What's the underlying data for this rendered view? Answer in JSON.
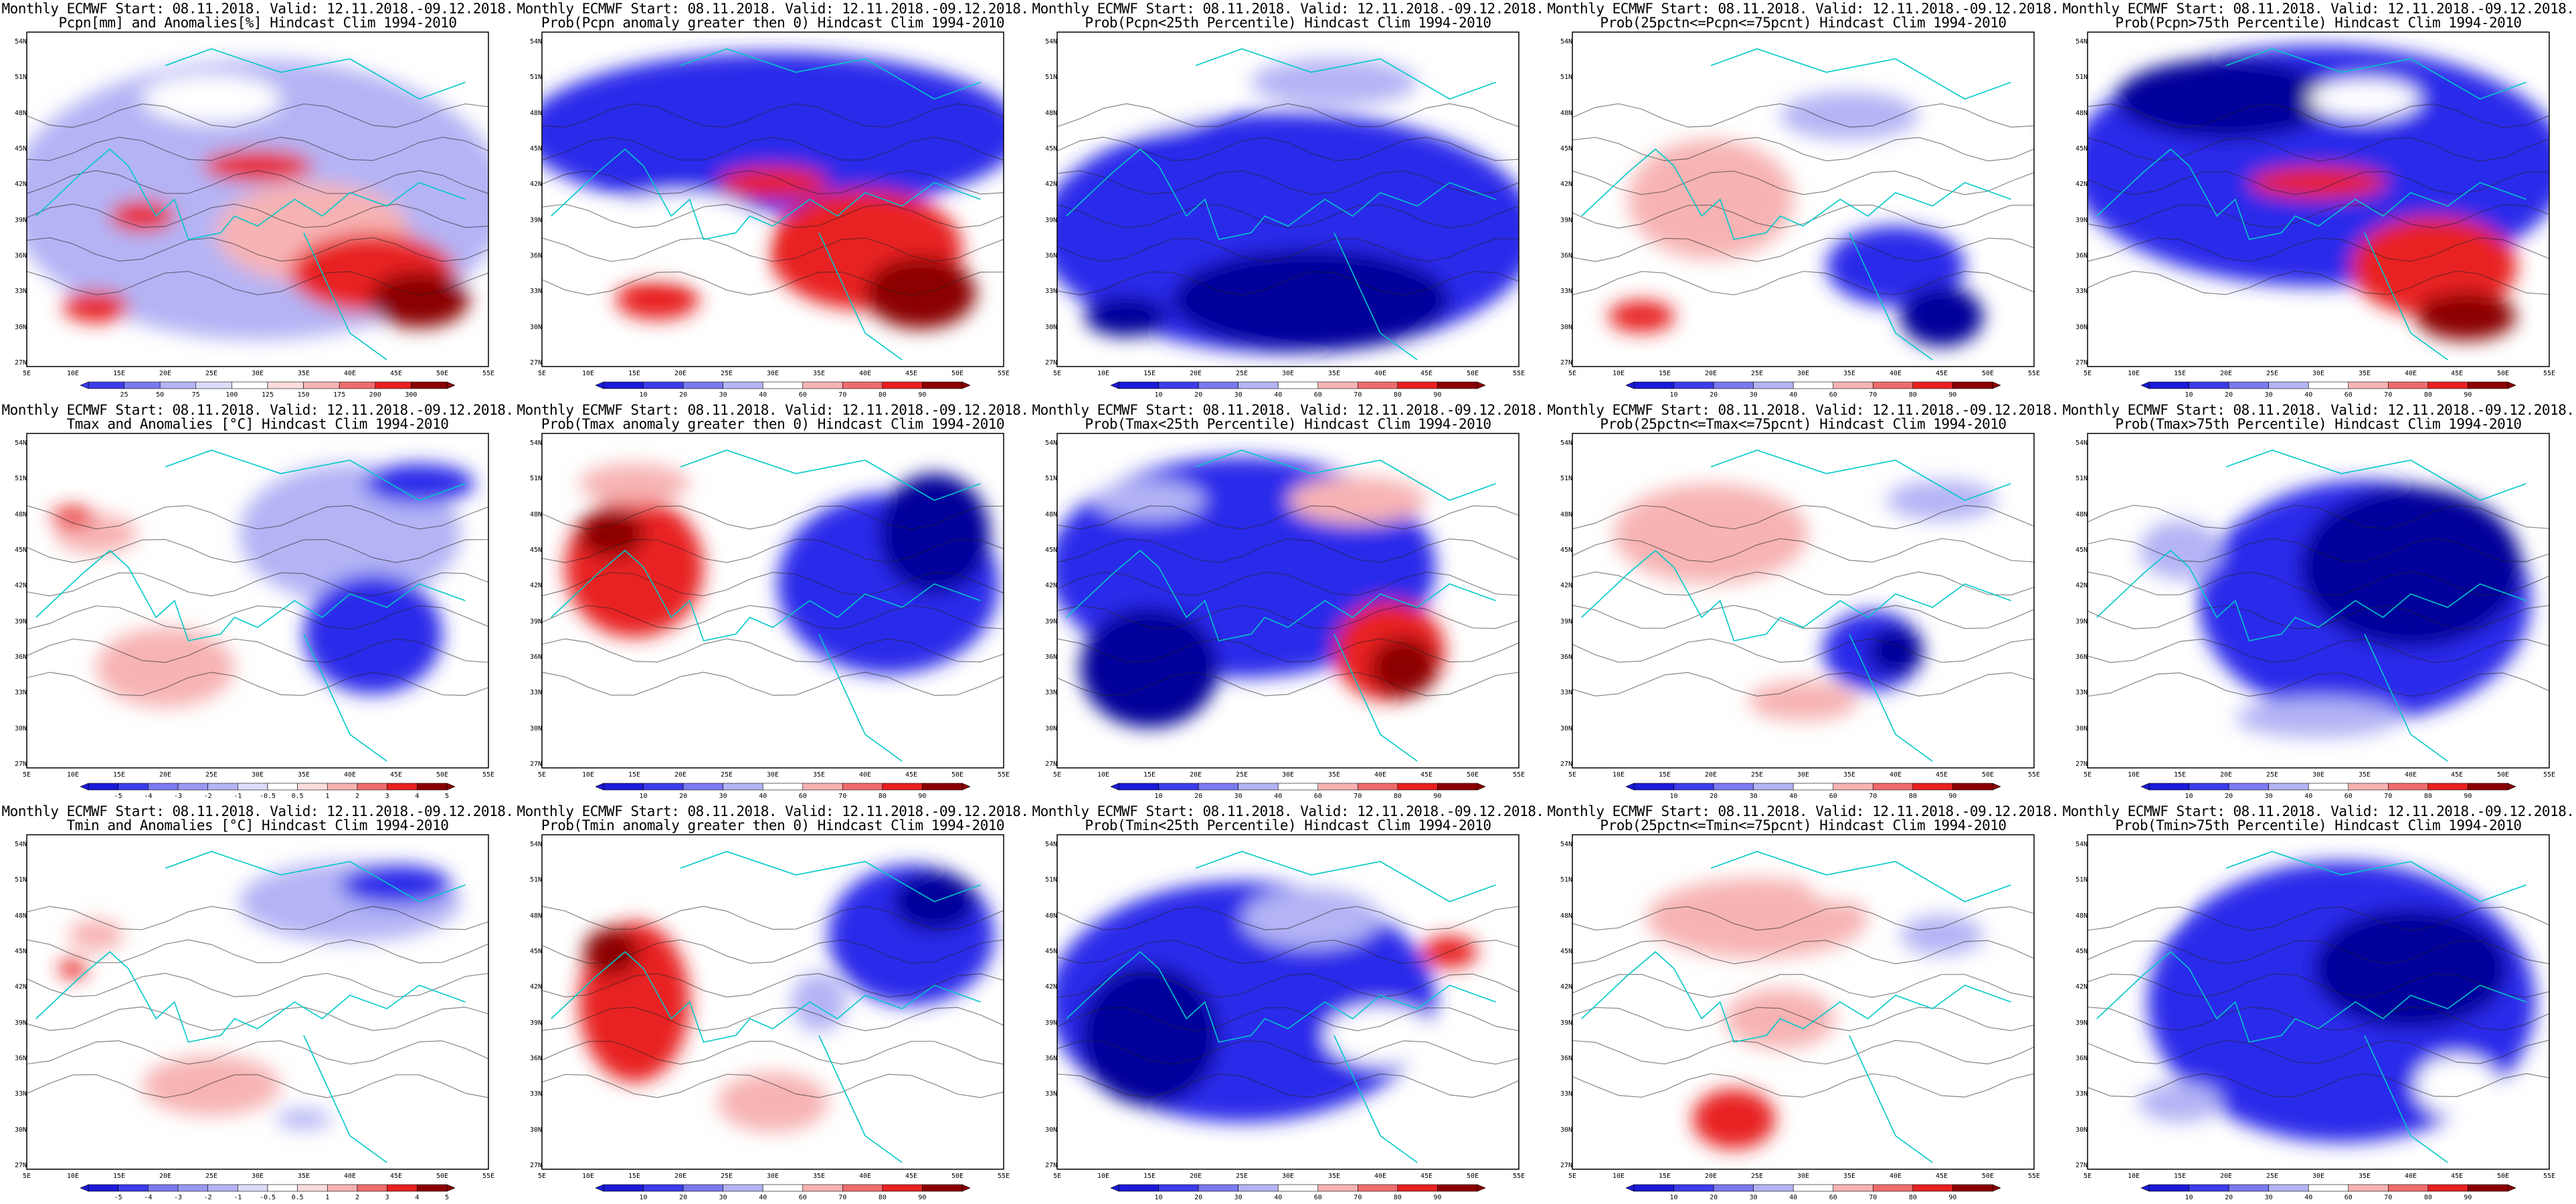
{
  "header_common": "Monthly ECMWF Start: 08.11.2018. Valid: 12.11.2018.-09.12.2018.",
  "lat_labels": [
    "54N",
    "51N",
    "48N",
    "45N",
    "42N",
    "39N",
    "36N",
    "33N",
    "30N",
    "27N"
  ],
  "lon_labels": [
    "5E",
    "10E",
    "15E",
    "20E",
    "25E",
    "30E",
    "35E",
    "40E",
    "45E",
    "50E",
    "55E"
  ],
  "colors": {
    "red_dark": "#8b0000",
    "red": "#e82020",
    "red_light": "#f7b3b3",
    "white": "#ffffff",
    "blue_light": "#b4b4f5",
    "blue": "#2a2aea",
    "blue_dark": "#00009a",
    "coast": "#00c8c8"
  },
  "colorbars": {
    "pcpn_anom": [
      "25",
      "50",
      "75",
      "100",
      "125",
      "150",
      "175",
      "200",
      "300"
    ],
    "temp_anom": [
      "-5",
      "-4",
      "-3",
      "-2",
      "-1",
      "-0.5",
      "0.5",
      "1",
      "2",
      "3",
      "4",
      "5"
    ],
    "prob": [
      "10",
      "20",
      "30",
      "40",
      "60",
      "70",
      "80",
      "90"
    ]
  },
  "panels": [
    {
      "id": "r1c1",
      "header": "Monthly ECMWF Start: 08.11.2018. Valid: 12.11.2018.-09.12.2018.",
      "subtitle": "Pcpn[mm] and Anomalies[%] Hindcast Clim 1994-2010",
      "cbar": "pcpn_anom",
      "scheme": "pcpn_anom"
    },
    {
      "id": "r1c2",
      "header": "Monthly ECMWF Start: 08.11.2018. Valid: 12.11.2018.-09.12.2018.",
      "subtitle": "Prob(Pcpn anomaly greater then 0) Hindcast Clim 1994-2010",
      "cbar": "prob",
      "scheme": "pcpn_pos"
    },
    {
      "id": "r1c3",
      "header": "Monthly ECMWF Start: 08.11.2018. Valid: 12.11.2018.-09.12.2018.",
      "subtitle": "Prob(Pcpn<25th Percentile) Hindcast Clim 1994-2010",
      "cbar": "prob",
      "scheme": "pcpn_low"
    },
    {
      "id": "r1c4",
      "header": "Monthly ECMWF Start: 08.11.2018. Valid: 12.11.2018.-09.12.2018.",
      "subtitle": "Prob(25pctn<=Pcpn<=75pcnt) Hindcast Clim 1994-2010",
      "cbar": "prob",
      "scheme": "pcpn_mid"
    },
    {
      "id": "r1c5",
      "header": "Monthly ECMWF Start: 08.11.2018. Valid: 12.11.2018.-09.12.2018.",
      "subtitle": "Prob(Pcpn>75th Percentile) Hindcast Clim 1994-2010",
      "cbar": "prob",
      "scheme": "pcpn_high"
    },
    {
      "id": "r2c1",
      "header": "Monthly ECMWF Start: 08.11.2018. Valid: 12.11.2018.-09.12.2018.",
      "subtitle": "Tmax and Anomalies [°C] Hindcast Clim 1994-2010",
      "cbar": "temp_anom",
      "scheme": "tmax_anom"
    },
    {
      "id": "r2c2",
      "header": "Monthly ECMWF Start: 08.11.2018. Valid: 12.11.2018.-09.12.2018.",
      "subtitle": "Prob(Tmax anomaly greater then 0) Hindcast Clim 1994-2010",
      "cbar": "prob",
      "scheme": "tmax_pos"
    },
    {
      "id": "r2c3",
      "header": "Monthly ECMWF Start: 08.11.2018. Valid: 12.11.2018.-09.12.2018.",
      "subtitle": "Prob(Tmax<25th Percentile) Hindcast Clim 1994-2010",
      "cbar": "prob",
      "scheme": "tmax_low"
    },
    {
      "id": "r2c4",
      "header": "Monthly ECMWF Start: 08.11.2018. Valid: 12.11.2018.-09.12.2018.",
      "subtitle": "Prob(25pctn<=Tmax<=75pcnt) Hindcast Clim 1994-2010",
      "cbar": "prob",
      "scheme": "tmax_mid"
    },
    {
      "id": "r2c5",
      "header": "Monthly ECMWF Start: 08.11.2018. Valid: 12.11.2018.-09.12.2018.",
      "subtitle": "Prob(Tmax>75th Percentile) Hindcast Clim 1994-2010",
      "cbar": "prob",
      "scheme": "tmax_high"
    },
    {
      "id": "r3c1",
      "header": "Monthly ECMWF Start: 08.11.2018. Valid: 12.11.2018.-09.12.2018.",
      "subtitle": "Tmin and Anomalies [°C] Hindcast Clim 1994-2010",
      "cbar": "temp_anom",
      "scheme": "tmin_anom"
    },
    {
      "id": "r3c2",
      "header": "Monthly ECMWF Start: 08.11.2018. Valid: 12.11.2018.-09.12.2018.",
      "subtitle": "Prob(Tmin anomaly greater then 0) Hindcast Clim 1994-2010",
      "cbar": "prob",
      "scheme": "tmin_pos"
    },
    {
      "id": "r3c3",
      "header": "Monthly ECMWF Start: 08.11.2018. Valid: 12.11.2018.-09.12.2018.",
      "subtitle": "Prob(Tmin<25th Percentile) Hindcast Clim 1994-2010",
      "cbar": "prob",
      "scheme": "tmin_low"
    },
    {
      "id": "r3c4",
      "header": "Monthly ECMWF Start: 08.11.2018. Valid: 12.11.2018.-09.12.2018.",
      "subtitle": "Prob(25pctn<=Tmin<=75pcnt) Hindcast Clim 1994-2010",
      "cbar": "prob",
      "scheme": "tmin_mid"
    },
    {
      "id": "r3c5",
      "header": "Monthly ECMWF Start: 08.11.2018. Valid: 12.11.2018.-09.12.2018.",
      "subtitle": "Prob(Tmin>75th Percentile) Hindcast Clim 1994-2010",
      "cbar": "prob",
      "scheme": "tmin_high"
    }
  ]
}
